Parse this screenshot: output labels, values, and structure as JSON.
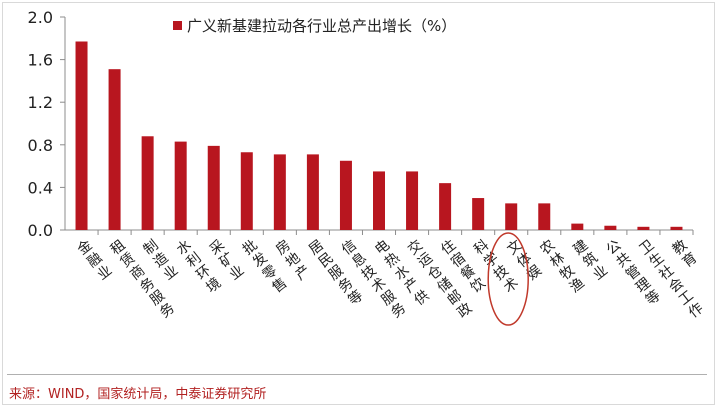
{
  "chart_data": {
    "type": "bar",
    "title": "",
    "xlabel": "",
    "ylabel": "",
    "ylim": [
      0,
      2.0
    ],
    "yticks": [
      "2.0",
      "1.6",
      "1.2",
      "0.8",
      "0.4",
      "0.0"
    ],
    "grid": false,
    "legend_position": "top",
    "bar_color": "#b8161f",
    "highlight_color": "#c0392b",
    "highlighted_category": "文体娱",
    "series": [
      {
        "name": "广义新基建拉动各行业总产出增长（%）",
        "values": [
          1.77,
          1.51,
          0.88,
          0.83,
          0.79,
          0.73,
          0.71,
          0.71,
          0.65,
          0.55,
          0.55,
          0.44,
          0.3,
          0.25,
          0.25,
          0.06,
          0.04,
          0.03,
          0.03
        ]
      }
    ],
    "categories": [
      "金融业",
      "租赁商务服务",
      "制造业",
      "水利环境",
      "采矿业",
      "批发零售",
      "房地产",
      "居民服务等",
      "信息技术服务",
      "电热水产供",
      "交运仓储邮政",
      "住宿餐饮",
      "科学技术",
      "文体娱",
      "农林牧渔",
      "建筑业",
      "公共管理等",
      "卫生社会工作",
      "教育"
    ]
  },
  "source_text": "来源：WIND，国家统计局，中泰证券研究所"
}
